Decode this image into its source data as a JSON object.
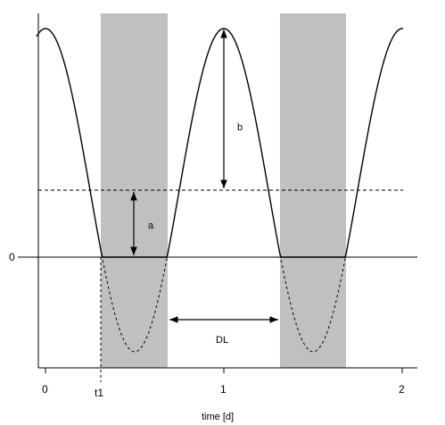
{
  "diagram": {
    "y_zero_label": "0",
    "x_axis_label": "time [d]",
    "x_ticks": [
      "0",
      "1",
      "2"
    ],
    "t1_label": "t1",
    "amplitude_a_label": "a",
    "amplitude_b_label": "b",
    "dl_label": "DL",
    "colors": {
      "shading": "#c0c0c0",
      "line": "#000000"
    }
  }
}
